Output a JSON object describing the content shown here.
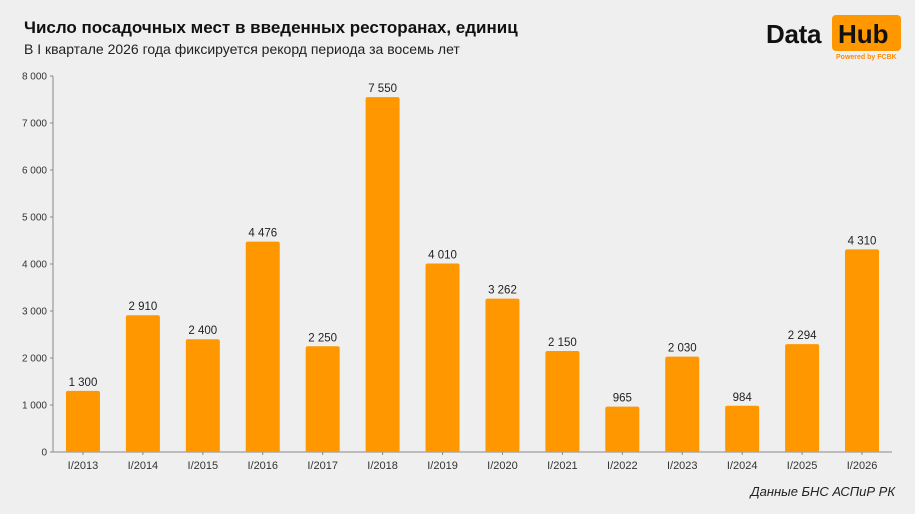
{
  "header": {
    "title": "Число посадочных мест в введенных ресторанах, единиц",
    "subtitle": "В I квартале 2026 года фиксируется рекорд периода за восемь лет"
  },
  "logo": {
    "word1": "Data",
    "word2": "Hub",
    "tagline": "Powered by FCBK",
    "accent_color": "#ff9700"
  },
  "source": "Данные БНС АСПиР РК",
  "chart_data": {
    "type": "bar",
    "title": "Число посадочных мест в введенных ресторанах, единиц",
    "subtitle": "В I квартале 2026 года фиксируется рекорд периода за восемь лет",
    "categories": [
      "I/2013",
      "I/2014",
      "I/2015",
      "I/2016",
      "I/2017",
      "I/2018",
      "I/2019",
      "I/2020",
      "I/2021",
      "I/2022",
      "I/2023",
      "I/2024",
      "I/2025",
      "I/2026"
    ],
    "values": [
      1300,
      2910,
      2400,
      4476,
      2250,
      7550,
      4010,
      3262,
      2150,
      965,
      2030,
      984,
      2294,
      4310
    ],
    "value_labels": [
      "1 300",
      "2 910",
      "2 400",
      "4 476",
      "2 250",
      "7 550",
      "4 010",
      "3 262",
      "2 150",
      "965",
      "2 030",
      "984",
      "2 294",
      "4 310"
    ],
    "ylim": [
      0,
      8000
    ],
    "yticks": [
      0,
      1000,
      2000,
      3000,
      4000,
      5000,
      6000,
      7000,
      8000
    ],
    "ytick_labels": [
      "0",
      "1 000",
      "2 000",
      "3 000",
      "4 000",
      "5 000",
      "6 000",
      "7 000",
      "8 000"
    ],
    "xlabel": "",
    "ylabel": "",
    "grid": false,
    "bar_color": "#ff9700"
  }
}
